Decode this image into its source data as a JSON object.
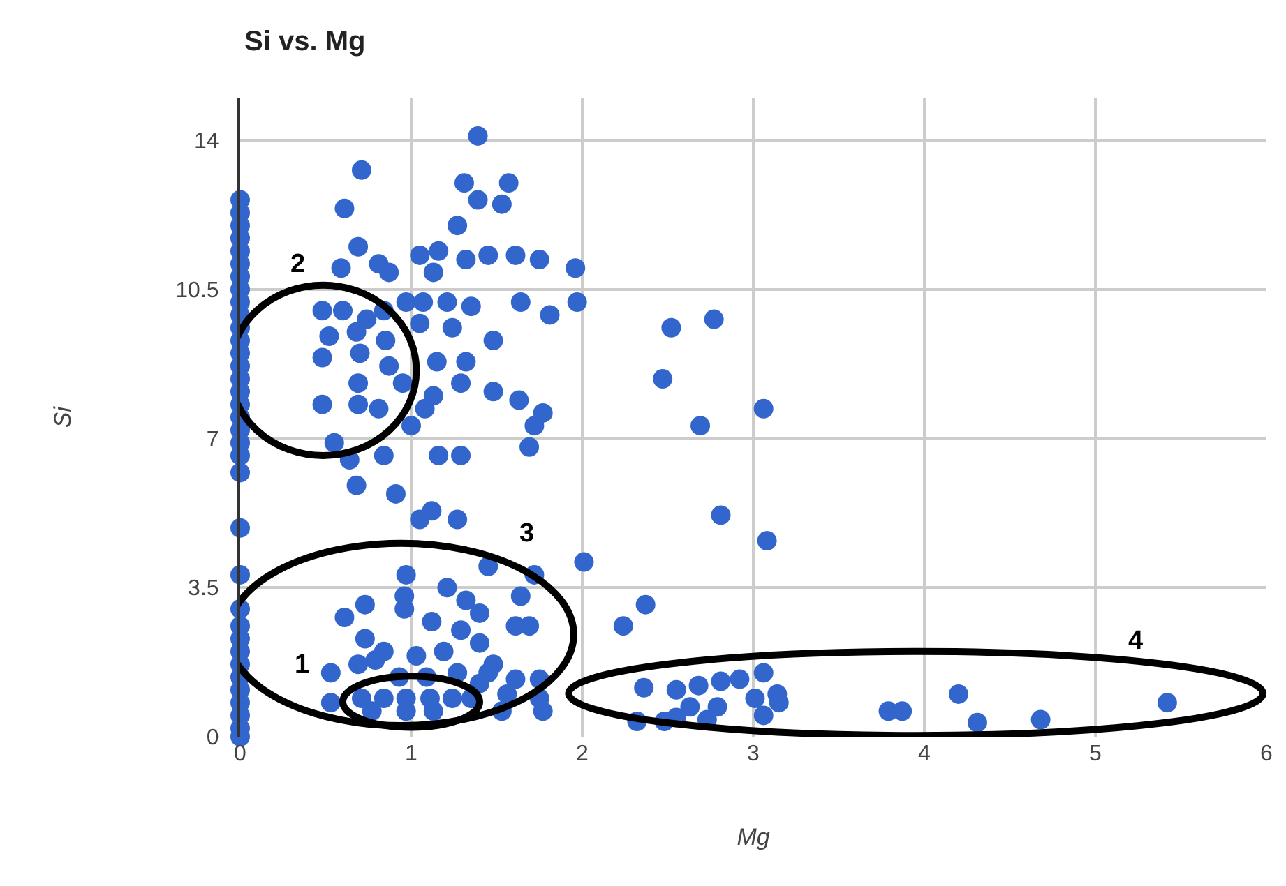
{
  "chart_data": {
    "type": "scatter",
    "title": "Si vs. Mg",
    "xlabel": "Mg",
    "ylabel": "Si",
    "xlim": [
      0,
      6
    ],
    "xticks": [
      0,
      1,
      2,
      3,
      4,
      5,
      6
    ],
    "ylim": [
      0,
      15
    ],
    "yticks": [
      0,
      3.5,
      7,
      10.5,
      14
    ],
    "grid": true,
    "marker": "circle",
    "annotations": [
      "1",
      "2",
      "3",
      "4"
    ],
    "series": [
      {
        "color": "#3366cc",
        "x": [
          0,
          0,
          0,
          0,
          0,
          0,
          0,
          0,
          0,
          0,
          0,
          0,
          0,
          0,
          0,
          0,
          0,
          0,
          0,
          0,
          0,
          0,
          0,
          0,
          0,
          0,
          0,
          0,
          0,
          0,
          0,
          0,
          0,
          0,
          0,
          1.39,
          0.71,
          1.31,
          1.57,
          1.39,
          1.53,
          0.61,
          1.27,
          0.69,
          1.05,
          1.16,
          1.32,
          1.45,
          1.61,
          1.75,
          1.96,
          0.59,
          0.81,
          0.87,
          1.13,
          0.48,
          0.6,
          0.74,
          0.84,
          0.97,
          1.07,
          1.21,
          1.35,
          1.64,
          1.97,
          1.81,
          1.24,
          1.48,
          0.52,
          0.68,
          0.85,
          1.05,
          0.48,
          0.7,
          0.87,
          1.15,
          1.32,
          1.29,
          0.95,
          0.69,
          0.48,
          0.69,
          0.81,
          1.08,
          1.13,
          1.48,
          1.63,
          1.77,
          1.72,
          1.69,
          1.0,
          0.55,
          0.84,
          1.16,
          1.29,
          0.64,
          0.68,
          0.91,
          1.05,
          1.27,
          1.12,
          2.01,
          1.45,
          1.72,
          0.97,
          0.61,
          0.73,
          0.96,
          0.96,
          1.21,
          1.32,
          1.4,
          1.64,
          1.12,
          1.29,
          1.61,
          1.69,
          0.73,
          0.84,
          1.03,
          1.19,
          1.4,
          1.48,
          1.61,
          1.75,
          1.77,
          1.75,
          0.53,
          0.53,
          0.69,
          0.79,
          0.71,
          0.84,
          0.97,
          1.11,
          1.24,
          0.97,
          0.77,
          1.13,
          1.35,
          1.4,
          1.56,
          1.53,
          1.45,
          1.27,
          1.09,
          0.93,
          2.52,
          2.77,
          2.47,
          2.69,
          3.06,
          2.81,
          3.08,
          2.37,
          2.24,
          2.36,
          2.32,
          2.48,
          2.55,
          2.68,
          2.81,
          2.92,
          3.06,
          3.14,
          3.15,
          3.01,
          2.79,
          2.63,
          2.73,
          2.55,
          3.06,
          3.79,
          3.87,
          4.2,
          4.31,
          4.68,
          5.42
        ],
        "values": [
          12.6,
          12.3,
          12.0,
          11.7,
          11.4,
          11.1,
          10.8,
          10.5,
          10.2,
          9.9,
          9.6,
          9.3,
          9.0,
          8.7,
          8.4,
          8.1,
          7.8,
          7.5,
          7.2,
          6.9,
          6.6,
          6.2,
          4.9,
          3.8,
          3.0,
          2.6,
          2.3,
          2.0,
          1.7,
          1.4,
          1.1,
          0.8,
          0.5,
          0.2,
          0,
          14.1,
          13.3,
          13.0,
          13.0,
          12.6,
          12.5,
          12.4,
          12.0,
          11.5,
          11.3,
          11.4,
          11.2,
          11.3,
          11.3,
          11.2,
          11.0,
          11.0,
          11.1,
          10.9,
          10.9,
          10.0,
          10.0,
          9.8,
          10.0,
          10.2,
          10.2,
          10.2,
          10.1,
          10.2,
          10.2,
          9.9,
          9.6,
          9.3,
          9.4,
          9.5,
          9.3,
          9.7,
          8.9,
          9.0,
          8.7,
          8.8,
          8.8,
          8.3,
          8.3,
          8.3,
          7.8,
          7.8,
          7.7,
          7.7,
          8.0,
          8.1,
          7.9,
          7.6,
          7.3,
          6.8,
          7.3,
          6.9,
          6.6,
          6.6,
          6.6,
          6.5,
          5.9,
          5.7,
          5.1,
          5.1,
          5.3,
          4.1,
          4.0,
          3.8,
          3.8,
          2.8,
          3.1,
          3.3,
          3.0,
          3.5,
          3.2,
          2.9,
          3.3,
          2.7,
          2.5,
          2.6,
          2.6,
          2.3,
          2.0,
          1.9,
          2.0,
          2.2,
          1.7,
          1.35,
          1.35,
          0.6,
          0.9,
          1.5,
          0.8,
          1.7,
          1.8,
          0.9,
          0.9,
          0.9,
          0.9,
          0.9,
          0.6,
          0.6,
          0.6,
          0.9,
          1.25,
          1.0,
          0.6,
          1.5,
          1.5,
          1.4,
          1.4,
          9.6,
          9.8,
          8.4,
          7.3,
          7.7,
          5.2,
          4.6,
          3.1,
          2.6,
          1.15,
          0.36,
          0.36,
          1.1,
          1.2,
          1.3,
          1.35,
          1.5,
          1.0,
          0.8,
          0.9,
          0.7,
          0.7,
          0.4,
          0.45,
          0.5,
          0.6,
          0.6,
          1.0,
          0.33,
          0.4,
          0.8
        ]
      }
    ]
  }
}
